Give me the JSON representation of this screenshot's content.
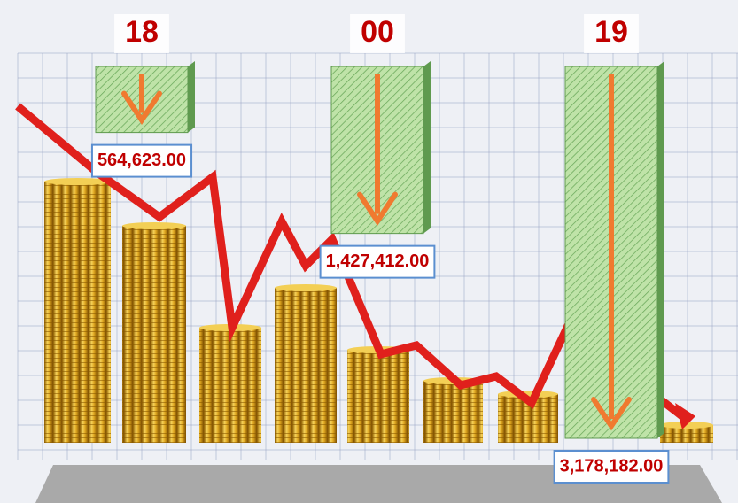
{
  "chart_data": {
    "type": "bar",
    "categories": [
      "18",
      "00",
      "19"
    ],
    "values": [
      564623,
      1427412,
      3178182
    ],
    "value_labels": [
      "564,623.00",
      "1,427,412.00",
      "3,178,182.00"
    ],
    "color": "#b6e0a0"
  }
}
